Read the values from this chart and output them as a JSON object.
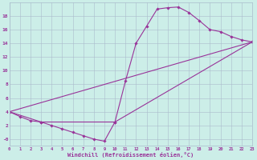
{
  "bg_color": "#cceee8",
  "grid_color": "#aabbcc",
  "line_color": "#993399",
  "marker_color": "#993399",
  "curve1_x": [
    0,
    1,
    2,
    3,
    4,
    5,
    6,
    7,
    8,
    9,
    10,
    11,
    12,
    13,
    14,
    15,
    16,
    17,
    18,
    19,
    20,
    21,
    22,
    23
  ],
  "curve1_y": [
    4.0,
    3.3,
    2.7,
    2.5,
    2.0,
    1.5,
    1.0,
    0.5,
    0.0,
    -0.3,
    2.5,
    8.5,
    14.0,
    16.5,
    19.0,
    19.2,
    19.3,
    18.5,
    17.3,
    16.0,
    15.7,
    15.0,
    14.5,
    14.2
  ],
  "curve2_x": [
    0,
    3,
    10,
    23
  ],
  "curve2_y": [
    4.0,
    2.5,
    2.5,
    14.2
  ],
  "curve3_x": [
    0,
    23
  ],
  "curve3_y": [
    4.0,
    14.2
  ],
  "xlim": [
    0,
    23
  ],
  "ylim": [
    -1.0,
    20.0
  ],
  "xticks": [
    0,
    1,
    2,
    3,
    4,
    5,
    6,
    7,
    8,
    9,
    10,
    11,
    12,
    13,
    14,
    15,
    16,
    17,
    18,
    19,
    20,
    21,
    22,
    23
  ],
  "yticks": [
    0,
    2,
    4,
    6,
    8,
    10,
    12,
    14,
    16,
    18
  ],
  "ytick_labels": [
    "-0",
    "2",
    "4",
    "6",
    "8",
    "10",
    "12",
    "14",
    "16",
    "18"
  ],
  "xlabel": "Windchill (Refroidissement éolien,°C)"
}
